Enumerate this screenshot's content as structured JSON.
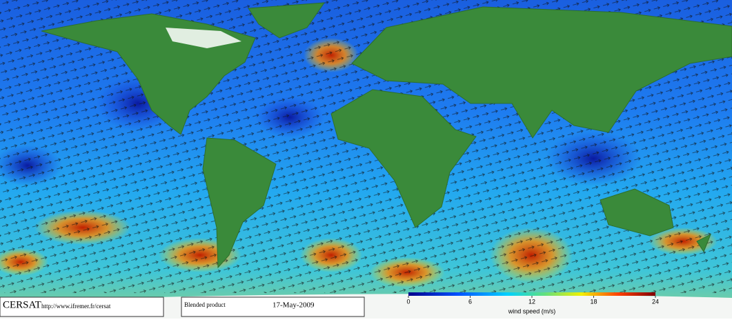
{
  "footer": {
    "brand": "CERSAT",
    "url": "http://www.ifremer.fr/cersat",
    "product": "Blended product",
    "date": "17-May-2009"
  },
  "colorbar": {
    "label": "wind speed (m/s)",
    "lim": [
      0,
      24
    ],
    "ticks": [
      0,
      6,
      12,
      18,
      24
    ]
  }
}
